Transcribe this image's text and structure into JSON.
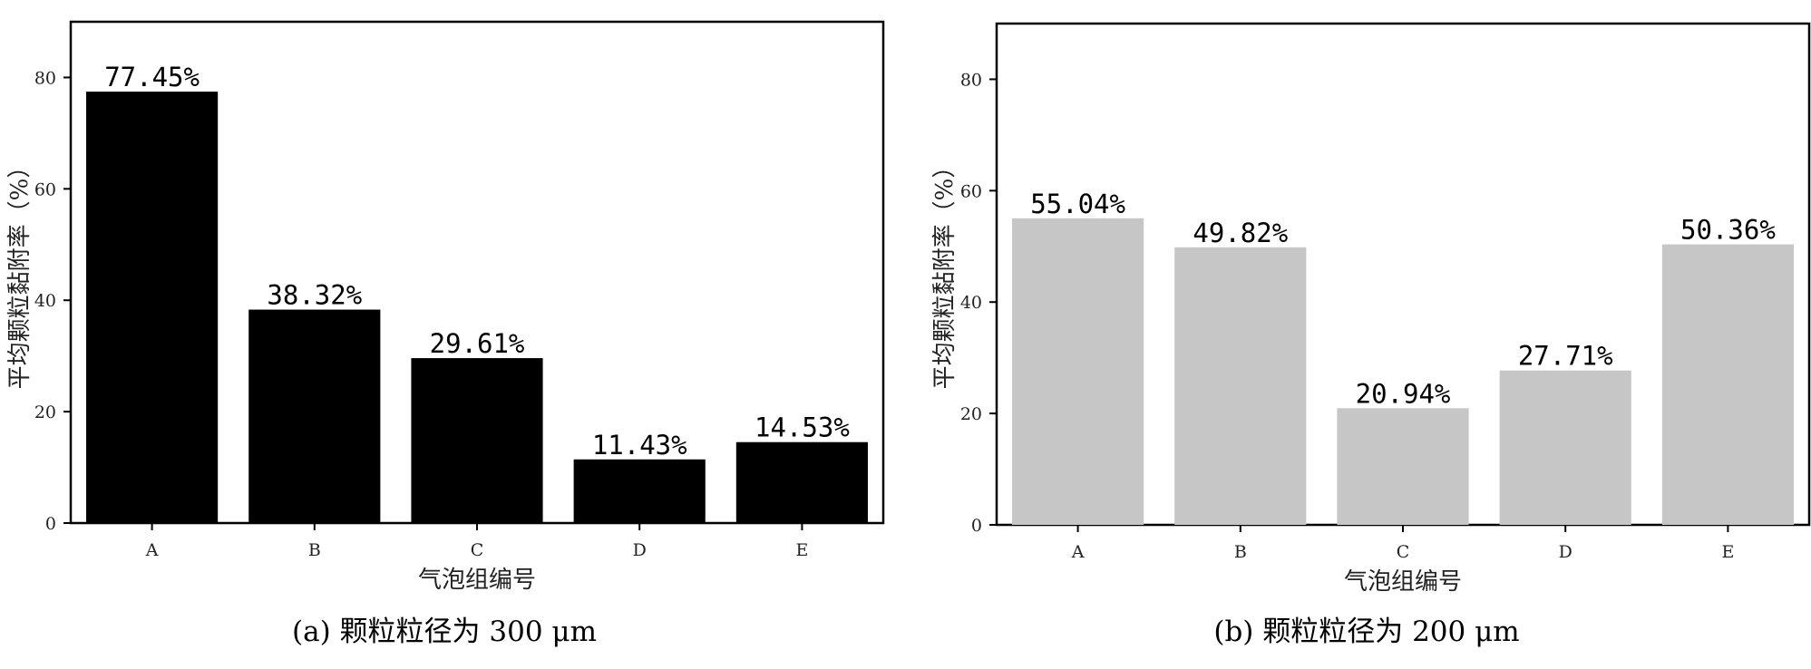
{
  "chart_data": [
    {
      "type": "bar",
      "caption": "(a) 颗粒粒径为 300 μm",
      "categories": [
        "A",
        "B",
        "C",
        "D",
        "E"
      ],
      "values": [
        77.45,
        38.32,
        29.61,
        11.43,
        14.53
      ],
      "value_labels": [
        "77.45%",
        "38.32%",
        "29.61%",
        "11.43%",
        "14.53%"
      ],
      "xlabel": "气泡组编号",
      "ylabel": "平均颗粒黏附率（%）",
      "ylim": [
        0,
        90
      ],
      "yticks": [
        "0",
        "20",
        "40",
        "60",
        "80"
      ],
      "bar_color": "#000000",
      "grid": false
    },
    {
      "type": "bar",
      "caption": "(b) 颗粒粒径为 200 μm",
      "categories": [
        "A",
        "B",
        "C",
        "D",
        "E"
      ],
      "values": [
        55.04,
        49.82,
        20.94,
        27.71,
        50.36
      ],
      "value_labels": [
        "55.04%",
        "49.82%",
        "20.94%",
        "27.71%",
        "50.36%"
      ],
      "xlabel": "气泡组编号",
      "ylabel": "平均颗粒黏附率（%）",
      "ylim": [
        0,
        90
      ],
      "yticks": [
        "0",
        "20",
        "40",
        "60",
        "80"
      ],
      "bar_color": "#c6c6c6",
      "grid": false
    }
  ]
}
